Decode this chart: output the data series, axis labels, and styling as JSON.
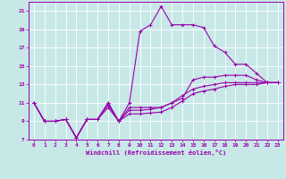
{
  "xlabel": "Windchill (Refroidissement éolien,°C)",
  "bg_color": "#c8e8e8",
  "line_color": "#9900aa",
  "grid_color": "#b0d0d0",
  "xlim": [
    -0.5,
    23.5
  ],
  "ylim": [
    7,
    22
  ],
  "xticks": [
    0,
    1,
    2,
    3,
    4,
    5,
    6,
    7,
    8,
    9,
    10,
    11,
    12,
    13,
    14,
    15,
    16,
    17,
    18,
    19,
    20,
    21,
    22,
    23
  ],
  "yticks": [
    7,
    9,
    11,
    13,
    15,
    17,
    19,
    21
  ],
  "lines": [
    [
      [
        0,
        11.0
      ],
      [
        1,
        9.0
      ],
      [
        2,
        9.0
      ],
      [
        3,
        9.2
      ],
      [
        4,
        7.2
      ],
      [
        5,
        9.2
      ],
      [
        6,
        9.2
      ],
      [
        7,
        11.0
      ],
      [
        8,
        9.0
      ],
      [
        9,
        11.0
      ],
      [
        10,
        18.8
      ],
      [
        11,
        19.5
      ],
      [
        12,
        21.5
      ],
      [
        13,
        19.5
      ],
      [
        14,
        19.5
      ],
      [
        15,
        19.5
      ],
      [
        16,
        19.2
      ],
      [
        17,
        17.2
      ],
      [
        18,
        16.5
      ],
      [
        19,
        15.2
      ],
      [
        20,
        15.2
      ],
      [
        21,
        14.2
      ],
      [
        22,
        13.2
      ],
      [
        23,
        13.2
      ]
    ],
    [
      [
        0,
        11.0
      ],
      [
        1,
        9.0
      ],
      [
        2,
        9.0
      ],
      [
        3,
        9.2
      ],
      [
        4,
        7.2
      ],
      [
        5,
        9.2
      ],
      [
        6,
        9.2
      ],
      [
        7,
        11.0
      ],
      [
        8,
        9.0
      ],
      [
        9,
        10.5
      ],
      [
        10,
        10.5
      ],
      [
        11,
        10.5
      ],
      [
        12,
        10.5
      ],
      [
        13,
        11.0
      ],
      [
        14,
        11.5
      ],
      [
        15,
        13.5
      ],
      [
        16,
        13.8
      ],
      [
        17,
        13.8
      ],
      [
        18,
        14.0
      ],
      [
        19,
        14.0
      ],
      [
        20,
        14.0
      ],
      [
        21,
        13.5
      ],
      [
        22,
        13.2
      ],
      [
        23,
        13.2
      ]
    ],
    [
      [
        0,
        11.0
      ],
      [
        1,
        9.0
      ],
      [
        2,
        9.0
      ],
      [
        3,
        9.2
      ],
      [
        4,
        7.2
      ],
      [
        5,
        9.2
      ],
      [
        6,
        9.2
      ],
      [
        7,
        10.8
      ],
      [
        8,
        9.0
      ],
      [
        9,
        10.2
      ],
      [
        10,
        10.2
      ],
      [
        11,
        10.3
      ],
      [
        12,
        10.5
      ],
      [
        13,
        11.0
      ],
      [
        14,
        11.8
      ],
      [
        15,
        12.5
      ],
      [
        16,
        12.8
      ],
      [
        17,
        13.0
      ],
      [
        18,
        13.2
      ],
      [
        19,
        13.2
      ],
      [
        20,
        13.2
      ],
      [
        21,
        13.2
      ],
      [
        22,
        13.2
      ],
      [
        23,
        13.2
      ]
    ],
    [
      [
        0,
        11.0
      ],
      [
        1,
        9.0
      ],
      [
        2,
        9.0
      ],
      [
        3,
        9.2
      ],
      [
        4,
        7.2
      ],
      [
        5,
        9.2
      ],
      [
        6,
        9.2
      ],
      [
        7,
        10.5
      ],
      [
        8,
        9.0
      ],
      [
        9,
        9.8
      ],
      [
        10,
        9.8
      ],
      [
        11,
        9.9
      ],
      [
        12,
        10.0
      ],
      [
        13,
        10.5
      ],
      [
        14,
        11.2
      ],
      [
        15,
        12.0
      ],
      [
        16,
        12.3
      ],
      [
        17,
        12.5
      ],
      [
        18,
        12.8
      ],
      [
        19,
        13.0
      ],
      [
        20,
        13.0
      ],
      [
        21,
        13.0
      ],
      [
        22,
        13.2
      ],
      [
        23,
        13.2
      ]
    ]
  ]
}
